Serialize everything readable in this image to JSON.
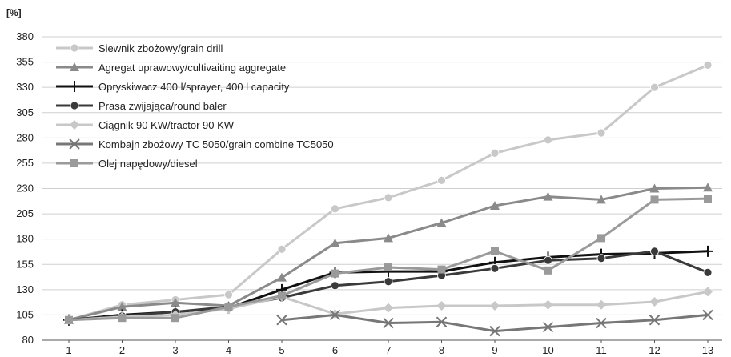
{
  "chart_data": {
    "type": "line",
    "title": "",
    "xlabel": "",
    "ylabel": "",
    "yunit": "[%]",
    "ylim": [
      80,
      380
    ],
    "yticks": [
      80,
      105,
      130,
      155,
      180,
      205,
      230,
      255,
      280,
      305,
      330,
      355,
      380
    ],
    "x": [
      1,
      2,
      3,
      4,
      5,
      6,
      7,
      8,
      9,
      10,
      11,
      12,
      13
    ],
    "grid": "horizontal",
    "legend_position": "top-left",
    "series": [
      {
        "name": "Siewnik zbożowy/grain drill",
        "color": "#c8c8c8",
        "marker": "circle",
        "values": [
          100,
          115,
          120,
          125,
          170,
          210,
          221,
          238,
          265,
          278,
          285,
          330,
          352
        ]
      },
      {
        "name": "Agregat uprawowy/cultivaiting aggregate",
        "color": "#8a8a8a",
        "marker": "triangle",
        "values": [
          100,
          113,
          117,
          114,
          142,
          176,
          181,
          196,
          213,
          222,
          219,
          230,
          231
        ]
      },
      {
        "name": "Opryskiwacz 400 l/sprayer, 400 l capacity",
        "color": "#111111",
        "marker": "plus",
        "values": [
          100,
          105,
          108,
          112,
          130,
          147,
          148,
          148,
          157,
          162,
          165,
          166,
          168
        ]
      },
      {
        "name": "Prasa zwijająca/round baler",
        "color": "#3a3a3a",
        "marker": "circle",
        "values": [
          100,
          104,
          108,
          113,
          122,
          134,
          138,
          144,
          151,
          159,
          161,
          168,
          147
        ]
      },
      {
        "name": "Ciągnik 90 KW/tractor 90 KW",
        "color": "#c8c8c8",
        "marker": "diamond",
        "values": [
          100,
          103,
          105,
          111,
          123,
          106,
          112,
          114,
          114,
          115,
          115,
          118,
          128
        ]
      },
      {
        "name": "Kombajn zbożowy TC 5050/grain combine TC5050",
        "color": "#777777",
        "marker": "x",
        "values": [
          null,
          null,
          null,
          null,
          100,
          105,
          97,
          98,
          89,
          93,
          97,
          100,
          105
        ]
      },
      {
        "name": "Olej napędowy/diesel",
        "color": "#9a9a9a",
        "marker": "square",
        "values": [
          100,
          102,
          102,
          113,
          124,
          146,
          152,
          150,
          168,
          149,
          181,
          219,
          220
        ]
      }
    ]
  }
}
